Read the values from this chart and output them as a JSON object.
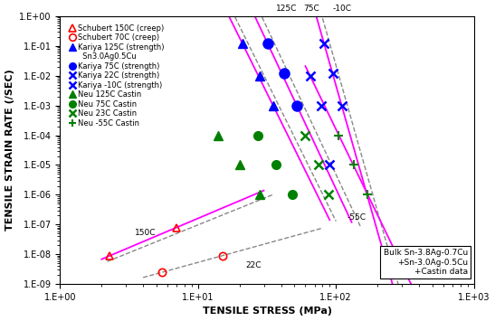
{
  "xlabel": "TENSILE STRESS (MPa)",
  "ylabel": "TENSILE STRAIN RATE (/SEC)",
  "xlim": [
    1.0,
    1000.0
  ],
  "ylim": [
    1e-09,
    1.0
  ],
  "schubert_150C_creep": {
    "x": [
      2.3,
      7.0
    ],
    "y": [
      9e-09,
      8e-08
    ],
    "color": "#ff0000",
    "marker": "^",
    "label": "Schubert 150C (creep)",
    "ms": 6,
    "mfc": "none"
  },
  "schubert_70C_creep": {
    "x": [
      5.5,
      15.0
    ],
    "y": [
      2.5e-09,
      9e-09
    ],
    "color": "#ff0000",
    "marker": "o",
    "label": "Schubert 70C (creep)",
    "ms": 6,
    "mfc": "none"
  },
  "kariya_125C_strength": {
    "x": [
      21.0,
      28.0,
      35.0
    ],
    "y": [
      0.12,
      0.01,
      0.001
    ],
    "color": "#0000ff",
    "marker": "^",
    "label": "Kariya 125C (strength)",
    "ms": 7,
    "mfc": "#0000ff"
  },
  "kariya_75C_strength": {
    "x": [
      32.0,
      42.0,
      52.0
    ],
    "y": [
      0.12,
      0.012,
      0.001
    ],
    "color": "#0000ff",
    "marker": "o",
    "label": "Kariya 75C (strength)",
    "ms": 8,
    "mfc": "#0000ff"
  },
  "kariya_22C_strength": {
    "x": [
      65.0,
      78.0,
      90.0
    ],
    "y": [
      0.01,
      0.001,
      1e-05
    ],
    "color": "#0000ff",
    "marker": "x",
    "label": "Kariya 22C (strength)",
    "ms": 7,
    "mfc": "#0000ff"
  },
  "kariya_m10C_strength": {
    "x": [
      82.0,
      95.0,
      110.0
    ],
    "y": [
      0.12,
      0.012,
      0.001
    ],
    "color": "#0000ff",
    "marker": "x",
    "label": "Kariya -10C (strength)",
    "ms": 7,
    "mfc": "#0000ff"
  },
  "neu_125C_castin": {
    "x": [
      14.0,
      20.0,
      28.0
    ],
    "y": [
      0.0001,
      1e-05,
      1e-06
    ],
    "color": "#008000",
    "marker": "^",
    "label": "Neu 125C Castin",
    "ms": 7,
    "mfc": "#008000"
  },
  "neu_75C_castin": {
    "x": [
      27.0,
      37.0,
      48.0
    ],
    "y": [
      0.0001,
      1e-05,
      1e-06
    ],
    "color": "#008000",
    "marker": "o",
    "label": "Neu 75C Castin",
    "ms": 7,
    "mfc": "#008000"
  },
  "neu_23C_castin": {
    "x": [
      60.0,
      75.0,
      88.0
    ],
    "y": [
      0.0001,
      1e-05,
      1e-06
    ],
    "color": "#008000",
    "marker": "x",
    "label": "Neu 23C Castin",
    "ms": 7,
    "mfc": "#008000"
  },
  "neu_m55C_castin": {
    "x": [
      105.0,
      135.0,
      170.0
    ],
    "y": [
      0.0001,
      1e-05,
      1e-06
    ],
    "color": "#008000",
    "marker": "+",
    "label": "Neu -55C Castin",
    "ms": 7,
    "mfc": "#008000"
  },
  "textbox": "Bulk Sn-3.8Ag-0.7Cu\n+Sn-3.0Ag-0.5Cu\n+Castin data"
}
